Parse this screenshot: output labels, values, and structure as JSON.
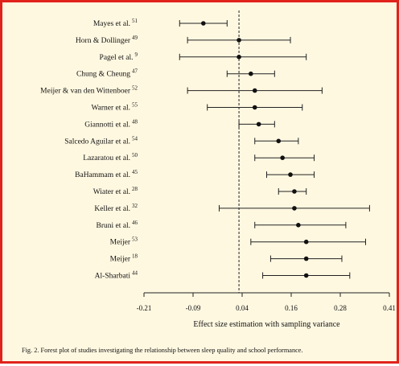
{
  "chart_data": {
    "type": "forest",
    "xlabel": "Effect size estimation with sampling variance",
    "xlim": [
      -0.21,
      0.41
    ],
    "xticks": [
      "-0.21",
      "-0.09",
      "0.04",
      "0.16",
      "0.28",
      "0.41"
    ],
    "reference_line": 0.03,
    "studies": [
      {
        "label": "Mayes et al.",
        "ref": "51",
        "estimate": -0.06,
        "ci": [
          -0.12,
          0.0
        ]
      },
      {
        "label": "Horn & Dollinger",
        "ref": "49",
        "estimate": 0.03,
        "ci": [
          -0.1,
          0.16
        ]
      },
      {
        "label": "Pagel et al.",
        "ref": "9",
        "estimate": 0.03,
        "ci": [
          -0.12,
          0.2
        ]
      },
      {
        "label": "Chung & Cheung",
        "ref": "47",
        "estimate": 0.06,
        "ci": [
          0.0,
          0.12
        ]
      },
      {
        "label": "Meijer & van den Wittenboer",
        "ref": "52",
        "estimate": 0.07,
        "ci": [
          -0.1,
          0.24
        ]
      },
      {
        "label": "Warner et al.",
        "ref": "55",
        "estimate": 0.07,
        "ci": [
          -0.05,
          0.19
        ]
      },
      {
        "label": "Giannotti et al.",
        "ref": "48",
        "estimate": 0.08,
        "ci": [
          0.03,
          0.12
        ]
      },
      {
        "label": "Salcedo Aguilar et al.",
        "ref": "54",
        "estimate": 0.13,
        "ci": [
          0.07,
          0.18
        ]
      },
      {
        "label": "Lazaratou et al.",
        "ref": "50",
        "estimate": 0.14,
        "ci": [
          0.07,
          0.22
        ]
      },
      {
        "label": "BaHammam et al.",
        "ref": "45",
        "estimate": 0.16,
        "ci": [
          0.1,
          0.22
        ]
      },
      {
        "label": "Wiater et al.",
        "ref": "28",
        "estimate": 0.17,
        "ci": [
          0.13,
          0.2
        ]
      },
      {
        "label": "Keller et al.",
        "ref": "32",
        "estimate": 0.17,
        "ci": [
          -0.02,
          0.36
        ]
      },
      {
        "label": "Bruni et al.",
        "ref": "46",
        "estimate": 0.18,
        "ci": [
          0.07,
          0.3
        ]
      },
      {
        "label": "Meijer",
        "ref": "53",
        "estimate": 0.2,
        "ci": [
          0.06,
          0.35
        ]
      },
      {
        "label": "Meijer",
        "ref": "18",
        "estimate": 0.2,
        "ci": [
          0.11,
          0.29
        ]
      },
      {
        "label": "Al-Sharbati",
        "ref": "44",
        "estimate": 0.2,
        "ci": [
          0.09,
          0.31
        ]
      }
    ]
  },
  "caption": "Fig. 2. Forest plot of studies investigating the relationship between sleep quality and school performance."
}
